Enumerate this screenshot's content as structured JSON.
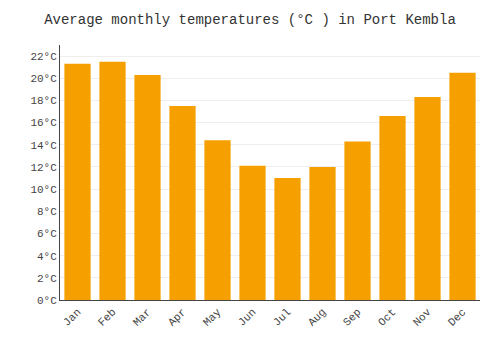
{
  "chart_data": {
    "type": "bar",
    "title": "Average monthly temperatures (°C ) in Port Kembla",
    "categories": [
      "Jan",
      "Feb",
      "Mar",
      "Apr",
      "May",
      "Jun",
      "Jul",
      "Aug",
      "Sep",
      "Oct",
      "Nov",
      "Dec"
    ],
    "values": [
      21.3,
      21.5,
      20.3,
      17.5,
      14.4,
      12.1,
      11.0,
      12.0,
      14.3,
      16.6,
      18.3,
      20.5
    ],
    "color": "#F5A000",
    "ylim": [
      0,
      23
    ],
    "yticks": [
      {
        "value": 0,
        "label": "0°C"
      },
      {
        "value": 2,
        "label": "2°C"
      },
      {
        "value": 4,
        "label": "4°C"
      },
      {
        "value": 6,
        "label": "6°C"
      },
      {
        "value": 8,
        "label": "8°C"
      },
      {
        "value": 10,
        "label": "10°C"
      },
      {
        "value": 12,
        "label": "12°C"
      },
      {
        "value": 14,
        "label": "14°C"
      },
      {
        "value": 16,
        "label": "16°C"
      },
      {
        "value": 18,
        "label": "18°C"
      },
      {
        "value": 20,
        "label": "20°C"
      },
      {
        "value": 22,
        "label": "22°C"
      }
    ],
    "grid": true
  }
}
